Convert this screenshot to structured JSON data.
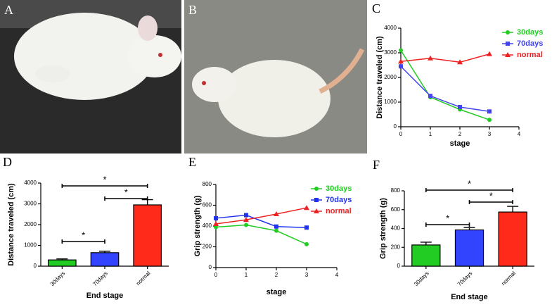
{
  "photos": [
    {
      "label": "A"
    },
    {
      "label": "B"
    }
  ],
  "chart_data": [
    {
      "type": "line",
      "panel": "C",
      "x_label": "stage",
      "y_label": "Distance traveled (cm)",
      "x": [
        0,
        1,
        2,
        3
      ],
      "xlim": [
        0,
        4
      ],
      "xticks": [
        0,
        1,
        2,
        3,
        4
      ],
      "ylim": [
        0,
        4000
      ],
      "yticks": [
        0,
        1000,
        2000,
        3000,
        4000
      ],
      "series": [
        {
          "name": "30days",
          "color": "#22cc22",
          "marker": "circle",
          "values": [
            3100,
            1200,
            700,
            280
          ]
        },
        {
          "name": "70days",
          "color": "#4444ee",
          "marker": "square",
          "values": [
            2450,
            1250,
            800,
            620
          ]
        },
        {
          "name": "normal",
          "color": "#ee2222",
          "marker": "triangle",
          "values": [
            2650,
            2780,
            2620,
            2950
          ]
        }
      ]
    },
    {
      "type": "bar",
      "panel": "D",
      "x_label": "End stage",
      "y_label": "Distance traveled (cm)",
      "categories": [
        "30days",
        "70days",
        "normal"
      ],
      "values": [
        300,
        650,
        2950
      ],
      "errors": [
        50,
        70,
        250
      ],
      "colors": [
        "#22cc22",
        "#3344ff",
        "#ff2a1a"
      ],
      "ylim": [
        0,
        4000
      ],
      "yticks": [
        0,
        1000,
        2000,
        3000,
        4000
      ],
      "annotations": [
        "*",
        "*",
        "*"
      ]
    },
    {
      "type": "line",
      "panel": "E",
      "x_label": "stage",
      "y_label": "Grip strength (g)",
      "x": [
        0,
        1,
        2,
        3
      ],
      "xlim": [
        0,
        4
      ],
      "xticks": [
        0,
        1,
        2,
        3,
        4
      ],
      "ylim": [
        0,
        800
      ],
      "yticks": [
        0,
        200,
        400,
        600,
        800
      ],
      "series": [
        {
          "name": "30days",
          "color": "#22cc22",
          "marker": "circle",
          "values": [
            390,
            410,
            355,
            225
          ]
        },
        {
          "name": "70days",
          "color": "#2233ee",
          "marker": "square",
          "values": [
            475,
            505,
            395,
            385
          ]
        },
        {
          "name": "normal",
          "color": "#ee2222",
          "marker": "triangle",
          "values": [
            420,
            460,
            515,
            575
          ]
        }
      ]
    },
    {
      "type": "bar",
      "panel": "F",
      "x_label": "End stage",
      "y_label": "Grip strength (g)",
      "categories": [
        "30days",
        "70days",
        "normal"
      ],
      "values": [
        225,
        385,
        575
      ],
      "errors": [
        30,
        25,
        60
      ],
      "colors": [
        "#22cc22",
        "#3344ff",
        "#ff2a1a"
      ],
      "ylim": [
        0,
        800
      ],
      "yticks": [
        0,
        200,
        400,
        600,
        800
      ],
      "annotations": [
        "*",
        "*",
        "*"
      ]
    }
  ]
}
